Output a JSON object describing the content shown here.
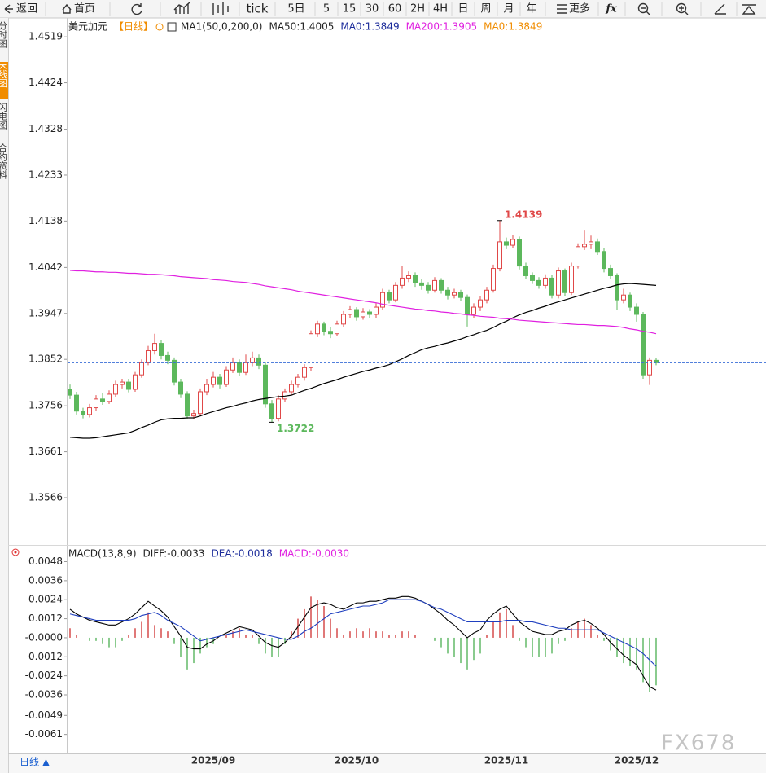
{
  "toolbar": {
    "back": "返回",
    "home": "首页",
    "tick": "tick",
    "periods": [
      "5日",
      "5",
      "15",
      "30",
      "60",
      "2H",
      "4H",
      "日",
      "周",
      "月",
      "年"
    ],
    "more": "更多",
    "fx": "fx"
  },
  "side_tabs": [
    "分时图",
    "K线图",
    "闪电图",
    "合约资料"
  ],
  "bottom_tab": "日线 ▲",
  "watermark": "FX678",
  "chart_data": [
    {
      "type": "candlestick",
      "legend": [
        {
          "text": "美元加元",
          "color": "#222"
        },
        {
          "text": "【日线】",
          "color": "#f08c00"
        },
        {
          "text": "MA1(50,0,200,0)",
          "color": "#222"
        },
        {
          "text": "MA50:1.4005",
          "color": "#222"
        },
        {
          "text": "MA0:1.3849",
          "color": "#1a2a9a"
        },
        {
          "text": "MA200:1.3905",
          "color": "#e020e0"
        },
        {
          "text": "MA0:1.3849",
          "color": "#f08c00"
        }
      ],
      "categories": [
        null,
        null,
        null,
        null,
        null,
        null,
        null,
        null,
        null,
        null,
        null,
        null,
        null,
        null,
        null,
        null,
        null,
        null,
        null,
        null,
        null,
        null,
        "2025/09",
        null,
        null,
        null,
        null,
        null,
        null,
        null,
        null,
        null,
        null,
        null,
        null,
        null,
        null,
        null,
        null,
        null,
        null,
        null,
        null,
        null,
        "2025/10",
        null,
        null,
        null,
        null,
        null,
        null,
        null,
        null,
        null,
        null,
        null,
        null,
        null,
        null,
        null,
        null,
        null,
        null,
        null,
        null,
        null,
        null,
        "2025/11",
        null,
        null,
        null,
        null,
        null,
        null,
        null,
        null,
        null,
        null,
        null,
        null,
        null,
        null,
        null,
        null,
        null,
        null,
        null,
        "2025/12",
        null,
        null,
        null
      ],
      "open": [
        1.379,
        1.3778,
        1.3745,
        1.3738,
        1.3752,
        1.377,
        1.3765,
        1.378,
        1.38,
        1.3805,
        1.379,
        1.382,
        1.3845,
        1.387,
        1.3885,
        1.386,
        1.385,
        1.3805,
        1.378,
        1.3735,
        1.374,
        1.3785,
        1.38,
        1.3815,
        1.38,
        1.383,
        1.3845,
        1.3825,
        1.3845,
        1.3855,
        1.384,
        1.376,
        1.373,
        1.377,
        1.3785,
        1.38,
        1.3815,
        1.3835,
        1.3905,
        1.3925,
        1.391,
        1.3905,
        1.3925,
        1.3945,
        1.3955,
        1.394,
        1.395,
        1.3945,
        1.396,
        1.399,
        1.3975,
        1.4005,
        1.402,
        1.4025,
        1.401,
        1.4005,
        1.3995,
        1.4015,
        1.3995,
        1.3985,
        1.399,
        1.398,
        1.3945,
        1.396,
        1.3975,
        1.3995,
        1.404,
        1.4095,
        1.4088,
        1.41,
        1.4045,
        1.4025,
        1.4015,
        1.4005,
        1.402,
        1.3985,
        1.4035,
        1.399,
        1.4045,
        1.4085,
        1.409,
        1.4095,
        1.4075,
        1.404,
        1.4025,
        1.3975,
        1.3985,
        1.396,
        1.3945,
        1.382,
        1.385
      ],
      "high": [
        1.38,
        1.3785,
        1.3752,
        1.376,
        1.3778,
        1.3782,
        1.3788,
        1.3808,
        1.3812,
        1.3812,
        1.3826,
        1.3852,
        1.388,
        1.3905,
        1.3892,
        1.3868,
        1.3856,
        1.3812,
        1.3786,
        1.3748,
        1.3792,
        1.3812,
        1.3826,
        1.3822,
        1.3838,
        1.3856,
        1.3852,
        1.3862,
        1.3868,
        1.3862,
        1.3846,
        1.3768,
        1.3778,
        1.3792,
        1.3808,
        1.3822,
        1.3842,
        1.3912,
        1.3932,
        1.393,
        1.3918,
        1.3932,
        1.3952,
        1.3962,
        1.396,
        1.3958,
        1.3956,
        1.3968,
        1.3998,
        1.3996,
        1.4012,
        1.4045,
        1.4034,
        1.4032,
        1.4018,
        1.4012,
        1.4022,
        1.402,
        1.4002,
        1.3998,
        1.3996,
        1.3986,
        1.3968,
        1.3982,
        1.4002,
        1.4048,
        1.4139,
        1.4104,
        1.411,
        1.4106,
        1.4052,
        1.4032,
        1.4022,
        1.4028,
        1.4026,
        1.4042,
        1.404,
        1.4052,
        1.4092,
        1.412,
        1.4108,
        1.4102,
        1.4082,
        1.4048,
        1.403,
        1.3998,
        1.399,
        1.3968,
        1.395,
        1.3856,
        1.3854
      ],
      "low": [
        1.377,
        1.3738,
        1.373,
        1.3732,
        1.3745,
        1.3758,
        1.376,
        1.3774,
        1.3792,
        1.3784,
        1.3785,
        1.3814,
        1.384,
        1.3862,
        1.3852,
        1.3842,
        1.3798,
        1.3772,
        1.3728,
        1.3728,
        1.3735,
        1.3778,
        1.3794,
        1.3792,
        1.3795,
        1.3824,
        1.3818,
        1.382,
        1.3838,
        1.3832,
        1.3752,
        1.3722,
        1.3724,
        1.3764,
        1.3778,
        1.3794,
        1.3808,
        1.3828,
        1.3898,
        1.3902,
        1.3896,
        1.39,
        1.3918,
        1.3938,
        1.3932,
        1.3934,
        1.3938,
        1.3938,
        1.3954,
        1.3968,
        1.397,
        1.3998,
        1.4012,
        1.4002,
        1.3996,
        1.3988,
        1.399,
        1.3988,
        1.3976,
        1.3978,
        1.3972,
        1.392,
        1.3938,
        1.3952,
        1.3968,
        1.399,
        1.4034,
        1.408,
        1.4082,
        1.4038,
        1.4018,
        1.4008,
        1.3998,
        1.3998,
        1.3978,
        1.3978,
        1.3982,
        1.3985,
        1.404,
        1.4078,
        1.408,
        1.4068,
        1.4032,
        1.4018,
        1.3955,
        1.3968,
        1.3952,
        1.393,
        1.3812,
        1.3799,
        1.384
      ],
      "close": [
        1.3778,
        1.3745,
        1.3738,
        1.3752,
        1.377,
        1.3765,
        1.378,
        1.38,
        1.3805,
        1.379,
        1.382,
        1.3845,
        1.387,
        1.3885,
        1.386,
        1.385,
        1.3805,
        1.378,
        1.3735,
        1.374,
        1.3785,
        1.38,
        1.3815,
        1.38,
        1.383,
        1.3845,
        1.3825,
        1.3845,
        1.3855,
        1.384,
        1.376,
        1.373,
        1.377,
        1.3785,
        1.38,
        1.3815,
        1.3835,
        1.3905,
        1.3925,
        1.391,
        1.3905,
        1.3925,
        1.3945,
        1.3955,
        1.394,
        1.395,
        1.3945,
        1.396,
        1.399,
        1.3975,
        1.4005,
        1.402,
        1.4025,
        1.401,
        1.4005,
        1.3995,
        1.4015,
        1.3995,
        1.3985,
        1.399,
        1.398,
        1.3945,
        1.396,
        1.3975,
        1.3995,
        1.404,
        1.4095,
        1.4088,
        1.41,
        1.4045,
        1.4025,
        1.4015,
        1.4005,
        1.402,
        1.3985,
        1.4035,
        1.399,
        1.4045,
        1.4085,
        1.409,
        1.4095,
        1.4075,
        1.404,
        1.4025,
        1.3975,
        1.3985,
        1.396,
        1.3945,
        1.382,
        1.385,
        1.3845
      ],
      "series": [
        {
          "color": "#000000",
          "values": [
            1.3691,
            1.369,
            1.3689,
            1.3689,
            1.369,
            1.3692,
            1.3694,
            1.3696,
            1.3698,
            1.37,
            1.3705,
            1.3711,
            1.3716,
            1.3722,
            1.3727,
            1.3729,
            1.373,
            1.373,
            1.3731,
            1.3731,
            1.3735,
            1.374,
            1.3744,
            1.3748,
            1.3752,
            1.3755,
            1.3759,
            1.3762,
            1.3766,
            1.3769,
            1.3771,
            1.3773,
            1.3775,
            1.3776,
            1.3778,
            1.3783,
            1.3788,
            1.3792,
            1.3797,
            1.3802,
            1.3806,
            1.381,
            1.3815,
            1.3819,
            1.3823,
            1.3827,
            1.383,
            1.3834,
            1.3837,
            1.3841,
            1.3847,
            1.3853,
            1.386,
            1.3866,
            1.3872,
            1.3876,
            1.3879,
            1.3883,
            1.3886,
            1.389,
            1.3894,
            1.3899,
            1.3903,
            1.3908,
            1.3912,
            1.3918,
            1.3925,
            1.3931,
            1.3938,
            1.3944,
            1.3949,
            1.3953,
            1.3958,
            1.3962,
            1.3967,
            1.3971,
            1.3975,
            1.3979,
            1.3983,
            1.3987,
            1.3991,
            1.3995,
            1.3999,
            1.4002,
            1.4006,
            1.4008,
            1.4009,
            1.4008,
            1.4007,
            1.4006,
            1.4005
          ]
        },
        {
          "color": "#e020e0",
          "values": [
            1.4036,
            1.4035,
            1.4035,
            1.4034,
            1.4033,
            1.4033,
            1.4032,
            1.4032,
            1.4031,
            1.403,
            1.403,
            1.4029,
            1.4028,
            1.4028,
            1.4027,
            1.4026,
            1.4025,
            1.4023,
            1.4022,
            1.4021,
            1.402,
            1.4019,
            1.4017,
            1.4016,
            1.4015,
            1.4013,
            1.4012,
            1.4011,
            1.4009,
            1.4007,
            1.4004,
            1.4002,
            1.4,
            1.3998,
            1.3996,
            1.3993,
            1.3991,
            1.3989,
            1.3987,
            1.3985,
            1.3983,
            1.3981,
            1.3979,
            1.3977,
            1.3975,
            1.3973,
            1.3971,
            1.3969,
            1.3966,
            1.3964,
            1.3962,
            1.396,
            1.3958,
            1.3956,
            1.3955,
            1.3953,
            1.3952,
            1.395,
            1.3949,
            1.3947,
            1.3946,
            1.3944,
            1.3943,
            1.3941,
            1.394,
            1.3939,
            1.3937,
            1.3936,
            1.3935,
            1.3933,
            1.3932,
            1.3931,
            1.393,
            1.3929,
            1.3928,
            1.3927,
            1.3926,
            1.3925,
            1.3924,
            1.3924,
            1.3923,
            1.3922,
            1.3922,
            1.3921,
            1.392,
            1.3918,
            1.3915,
            1.3913,
            1.391,
            1.3908,
            1.3905
          ]
        }
      ],
      "up_color": "#e04848",
      "down_color": "#5cb85c",
      "last_price_color": "#3a6fd8",
      "ylim": [
        1.347,
        1.4558
      ],
      "yticks": [
        1.4519,
        1.4424,
        1.4328,
        1.4233,
        1.4138,
        1.4042,
        1.3947,
        1.3852,
        1.3756,
        1.3661,
        1.3566
      ]
    },
    {
      "type": "macd",
      "legend": [
        {
          "text": "MACD(13,8,9)",
          "color": "#222"
        },
        {
          "text": "DIFF:-0.0033",
          "color": "#222"
        },
        {
          "text": "DEA:-0.0018",
          "color": "#1a2a9a"
        },
        {
          "text": "MACD:-0.0030",
          "color": "#e020e0"
        }
      ],
      "series": [
        {
          "style": "line",
          "color": "#000000",
          "values": [
            0.0018,
            0.0015,
            0.0013,
            0.0011,
            0.001,
            0.0009,
            0.0008,
            0.0008,
            0.001,
            0.0012,
            0.0015,
            0.0019,
            0.0023,
            0.002,
            0.0017,
            0.0013,
            0.0007,
            0.0001,
            -0.0006,
            -0.0007,
            -0.0007,
            -0.0004,
            -0.0002,
            0.0001,
            0.0003,
            0.0005,
            0.0007,
            0.0006,
            0.0005,
            0.0001,
            -0.0003,
            -0.0005,
            -0.0006,
            -0.0003,
            0.0001,
            0.0007,
            0.0013,
            0.0019,
            0.0021,
            0.0022,
            0.0021,
            0.0019,
            0.0018,
            0.002,
            0.0022,
            0.0022,
            0.0023,
            0.0023,
            0.0024,
            0.0025,
            0.0025,
            0.0026,
            0.0026,
            0.0025,
            0.0023,
            0.0021,
            0.0018,
            0.0015,
            0.0011,
            0.0008,
            0.0004,
            0,
            0.0003,
            0.0005,
            0.0011,
            0.0015,
            0.0018,
            0.002,
            0.0015,
            0.001,
            0.0007,
            0.0004,
            0.0003,
            0.0002,
            0.0002,
            0.0004,
            0.0005,
            0.0008,
            0.001,
            0.0011,
            0.0009,
            0.0006,
            0.0002,
            -0.0003,
            -0.0007,
            -0.0011,
            -0.0014,
            -0.0017,
            -0.0024,
            -0.0031,
            -0.0033
          ]
        },
        {
          "style": "line",
          "color": "#1f3fbf",
          "values": [
            0.0015,
            0.0014,
            0.0013,
            0.0012,
            0.0011,
            0.0011,
            0.0011,
            0.0011,
            0.0011,
            0.0011,
            0.0012,
            0.0014,
            0.0015,
            0.0016,
            0.0014,
            0.0011,
            0.0009,
            0.0007,
            0.0004,
            0.0001,
            -0.0002,
            -0.0001,
            0,
            0.0001,
            0.0002,
            0.0003,
            0.0004,
            0.0005,
            0.0004,
            0.0003,
            0.0002,
            0.0001,
            0,
            -0.0001,
            -0.0001,
            0.0001,
            0.0004,
            0.0006,
            0.0009,
            0.0012,
            0.0015,
            0.0016,
            0.0017,
            0.0018,
            0.0019,
            0.002,
            0.002,
            0.0021,
            0.0022,
            0.0024,
            0.0024,
            0.0024,
            0.0024,
            0.0024,
            0.0023,
            0.0021,
            0.0019,
            0.0018,
            0.0016,
            0.0014,
            0.0012,
            0.001,
            0.001,
            0.001,
            0.001,
            0.001,
            0.001,
            0.0011,
            0.0011,
            0.0011,
            0.001,
            0.001,
            0.0009,
            0.0008,
            0.0007,
            0.0006,
            0.0006,
            0.0005,
            0.0005,
            0.0005,
            0.0005,
            0.0005,
            0.0003,
            0.0001,
            -0.0001,
            -0.0003,
            -0.0005,
            -0.0007,
            -0.001,
            -0.0014,
            -0.0018
          ]
        },
        {
          "style": "bar",
          "values": [
            0.0006,
            0.0002,
            0,
            -0.0002,
            -0.0002,
            -0.0004,
            -0.0006,
            -0.0006,
            -0.0002,
            0.0002,
            0.0006,
            0.001,
            0.0016,
            0.0008,
            0.0006,
            0.0004,
            -0.0004,
            -0.0012,
            -0.002,
            -0.0016,
            -0.001,
            -0.0006,
            -0.0004,
            0,
            0.0002,
            0.0004,
            0.0006,
            0.0002,
            0.0002,
            -0.0004,
            -0.001,
            -0.0012,
            -0.0012,
            -0.0004,
            0.0004,
            0.0012,
            0.0018,
            0.0026,
            0.0024,
            0.002,
            0.0012,
            0.0006,
            0.0002,
            0.0004,
            0.0006,
            0.0004,
            0.0006,
            0.0004,
            0.0004,
            0.0002,
            0.0002,
            0.0004,
            0.0004,
            0.0002,
            0,
            0,
            -0.0002,
            -0.0006,
            -0.001,
            -0.0012,
            -0.0016,
            -0.002,
            -0.0014,
            -0.001,
            0.0002,
            0.001,
            0.0016,
            0.0018,
            0.0008,
            -0.0002,
            -0.0006,
            -0.0012,
            -0.0012,
            -0.0012,
            -0.001,
            -0.0004,
            -0.0002,
            0.0006,
            0.001,
            0.0012,
            0.0008,
            0.0002,
            -0.0002,
            -0.0008,
            -0.0012,
            -0.0016,
            -0.0018,
            -0.002,
            -0.0028,
            -0.0034,
            -0.003
          ]
        }
      ],
      "up_color": "#d03030",
      "down_color": "#4caf50",
      "ylim": [
        -0.0073,
        0.0057
      ],
      "yticks": [
        0.0048,
        0.0036,
        0.0024,
        0.0012,
        {
          "value": 0,
          "label": "-0.0000"
        },
        -0.0012,
        -0.0024,
        -0.0036,
        -0.0049,
        -0.0061
      ]
    }
  ]
}
